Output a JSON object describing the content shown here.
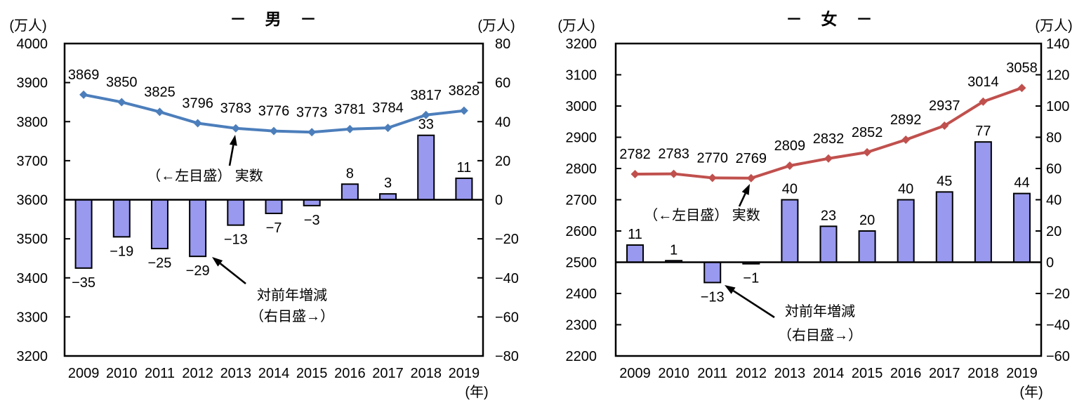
{
  "chart_data": [
    {
      "type": "line+bar",
      "panel": "male",
      "title": "－　男　－",
      "x_label": "(年)",
      "categories": [
        "2009",
        "2010",
        "2011",
        "2012",
        "2013",
        "2014",
        "2015",
        "2016",
        "2017",
        "2018",
        "2019"
      ],
      "left_axis": {
        "unit": "(万人)",
        "min": 3200,
        "max": 4000,
        "step": 100
      },
      "right_axis": {
        "unit": "(万人)",
        "min": -80,
        "max": 80,
        "step": 20
      },
      "line_series": {
        "name": "実数",
        "scale": "left",
        "color": "#4C7EBB",
        "values": [
          3869,
          3850,
          3825,
          3796,
          3783,
          3776,
          3773,
          3781,
          3784,
          3817,
          3828
        ]
      },
      "bar_series": {
        "name": "対前年増減",
        "scale": "right",
        "fill": "#9999F0",
        "border": "#000000",
        "values": [
          -35,
          -19,
          -25,
          -29,
          -13,
          -7,
          -3,
          8,
          3,
          33,
          11
        ]
      },
      "annotations": {
        "line_label": "（←左目盛） 実数",
        "bar_label_line1": "対前年増減",
        "bar_label_line2": "（右目盛→）"
      }
    },
    {
      "type": "line+bar",
      "panel": "female",
      "title": "－　女　－",
      "x_label": "(年)",
      "categories": [
        "2009",
        "2010",
        "2011",
        "2012",
        "2013",
        "2014",
        "2015",
        "2016",
        "2017",
        "2018",
        "2019"
      ],
      "left_axis": {
        "unit": "(万人)",
        "min": 2200,
        "max": 3200,
        "step": 100
      },
      "right_axis": {
        "unit": "(万人)",
        "min": -60,
        "max": 140,
        "step": 20
      },
      "line_series": {
        "name": "実数",
        "scale": "left",
        "color": "#C0504D",
        "values": [
          2782,
          2783,
          2770,
          2769,
          2809,
          2832,
          2852,
          2892,
          2937,
          3014,
          3058
        ]
      },
      "bar_series": {
        "name": "対前年増減",
        "scale": "right",
        "fill": "#9999F0",
        "border": "#000000",
        "values": [
          11,
          1,
          -13,
          -1,
          40,
          23,
          20,
          40,
          45,
          77,
          44
        ]
      },
      "annotations": {
        "line_label": "（←左目盛） 実数",
        "bar_label_line1": "対前年増減",
        "bar_label_line2": "（右目盛→）"
      }
    }
  ]
}
